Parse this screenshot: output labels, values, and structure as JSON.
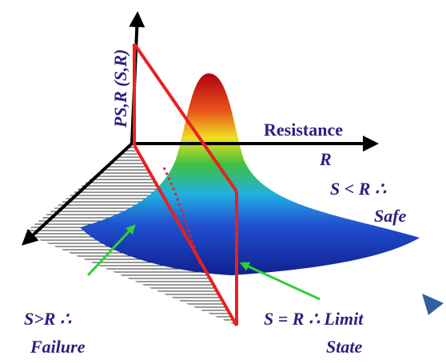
{
  "axis_label": "PS,R (S,R)",
  "resistance_label": "Resistance",
  "resistance_symbol": "R",
  "safe": {
    "condition": "S < R ∴",
    "label": "Safe"
  },
  "failure": {
    "condition": "S>R ∴",
    "label": "Failure"
  },
  "limit_state": {
    "condition": "S = R ∴ Limit",
    "label": "State"
  }
}
